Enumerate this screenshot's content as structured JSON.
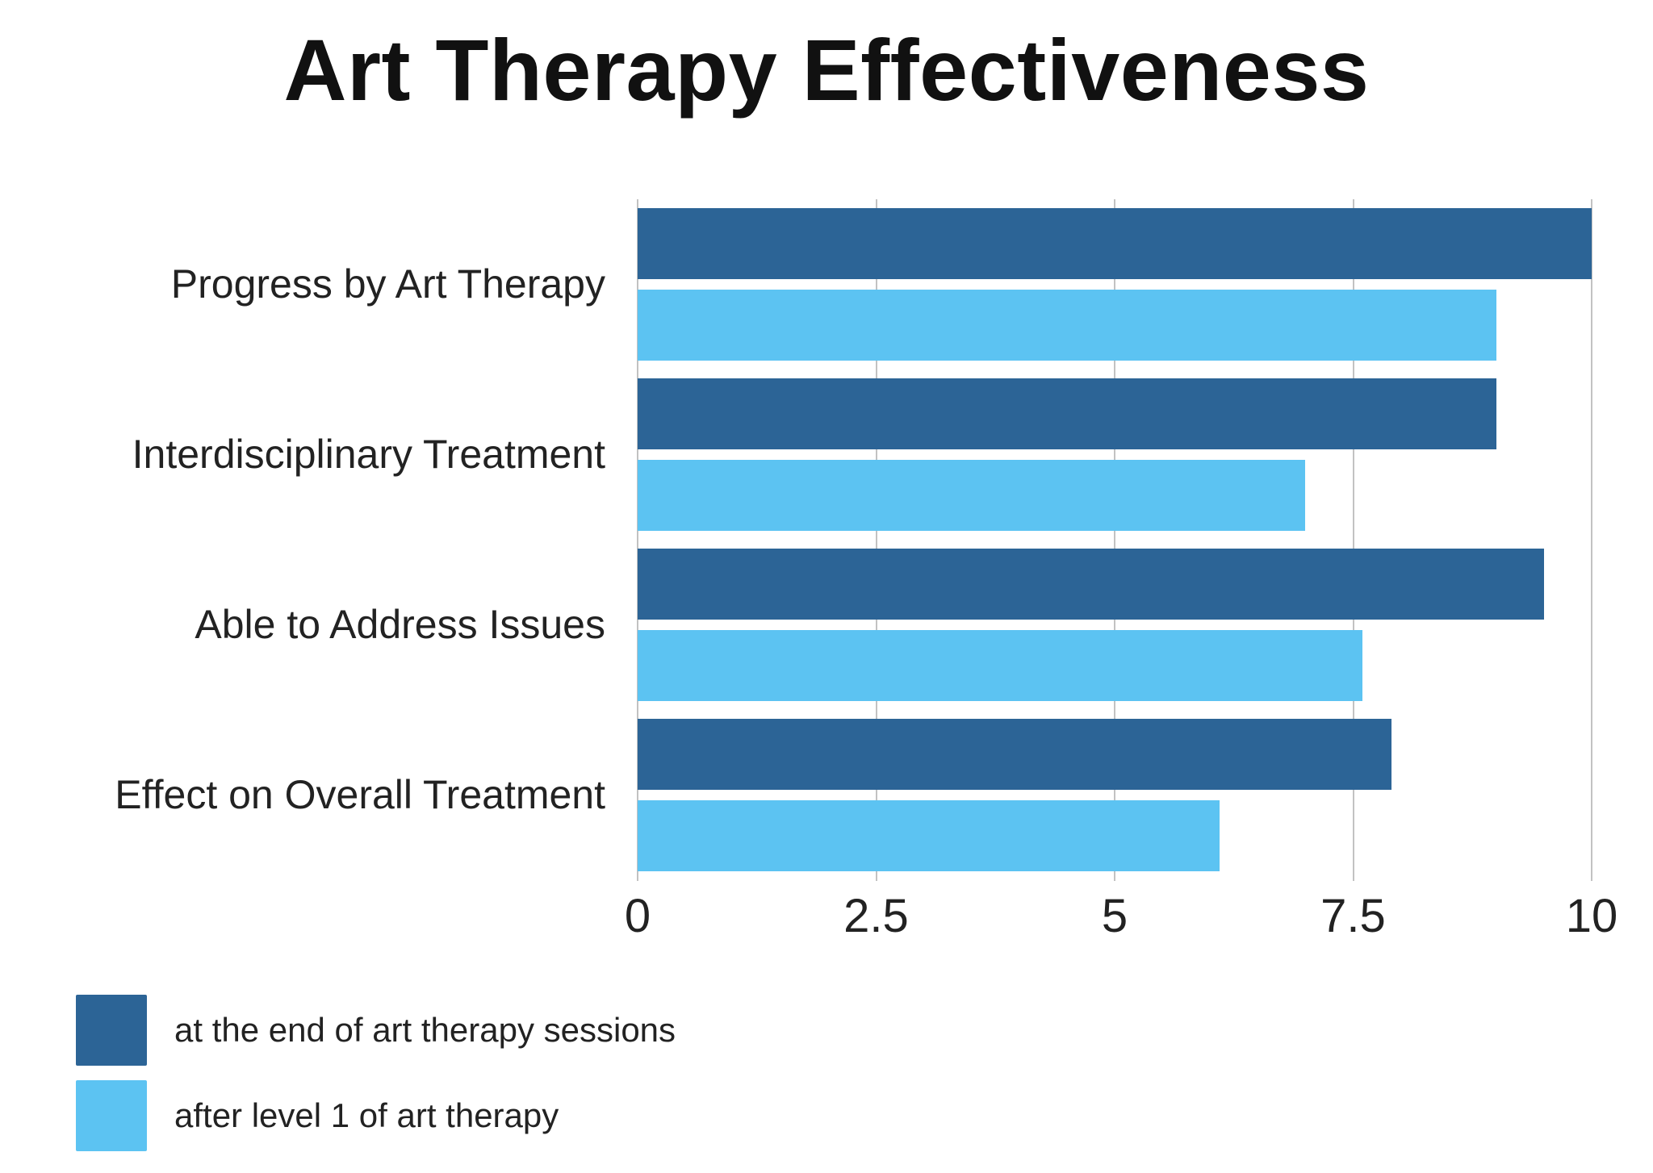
{
  "title": "Art Therapy Effectiveness",
  "chart_data": {
    "type": "bar",
    "orientation": "horizontal",
    "title": "Art Therapy Effectiveness",
    "categories": [
      "Progress by Art Therapy",
      "Interdisciplinary Treatment",
      "Able to Address Issues",
      "Effect on Overall Treatment"
    ],
    "series": [
      {
        "name": "at the end of art therapy sessions",
        "color": "#2C6496",
        "values": [
          10,
          9,
          9.5,
          7.9
        ]
      },
      {
        "name": "after level 1 of art therapy",
        "color": "#5CC3F2",
        "values": [
          9,
          7,
          7.6,
          6.1
        ]
      }
    ],
    "xlim": [
      0,
      10
    ],
    "xticks": [
      0,
      2.5,
      5,
      7.5,
      10
    ],
    "xtick_labels": [
      "0",
      "2.5",
      "5",
      "7.5",
      "10"
    ],
    "grid": true,
    "grid_color": "#c2c2c2",
    "legend_position": "bottom-left",
    "background": "#ffffff"
  }
}
